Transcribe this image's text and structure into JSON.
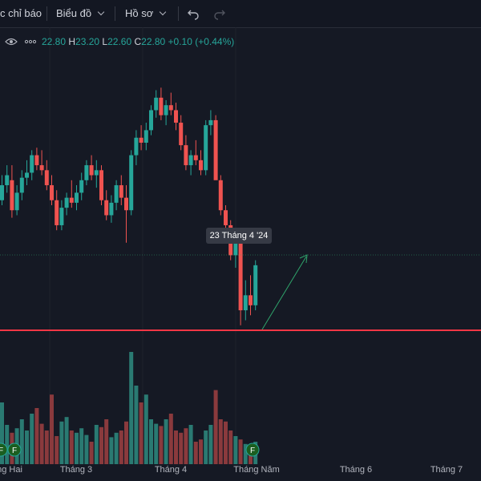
{
  "toolbar": {
    "indicators_label": "c chỉ báo",
    "chart_label": "Biểu đồ",
    "profile_label": "Hồ sơ",
    "undo_icon": "undo-icon",
    "redo_icon": "redo-icon"
  },
  "legend": {
    "o_value": "22.80",
    "h_label": "H",
    "h_value": "23.20",
    "l_label": "L",
    "l_value": "22.60",
    "c_label": "C",
    "c_value": "22.80",
    "change": "+0.10 (+0.44%)",
    "eye_icon": "eye-icon",
    "more_icon": "more-dots-icon"
  },
  "tooltip": "23 Tháng 4 '24",
  "events": [
    "F",
    "F",
    "F"
  ],
  "chart_data": {
    "type": "candlestick",
    "x_labels": [
      "ng Hai",
      "Tháng 3",
      "Tháng 4",
      "Tháng Năm",
      "Tháng 6",
      "Tháng 7"
    ],
    "crosshair_date": "23 Tháng 4 '24",
    "last_bar": {
      "open": 22.8,
      "high": 23.2,
      "low": 22.6,
      "close": 22.8,
      "change": 0.1,
      "change_pct": 0.44
    },
    "colors": {
      "up": "#26a69a",
      "down": "#ef5350",
      "background": "#151924",
      "support_line": "#f23645",
      "arrow": "#2fa36b"
    },
    "candles_relative": [
      [
        0.52,
        0.62,
        0.5,
        0.58
      ],
      [
        0.58,
        0.66,
        0.55,
        0.62
      ],
      [
        0.6,
        0.66,
        0.45,
        0.48
      ],
      [
        0.48,
        0.58,
        0.46,
        0.55
      ],
      [
        0.55,
        0.64,
        0.52,
        0.61
      ],
      [
        0.61,
        0.68,
        0.58,
        0.63
      ],
      [
        0.63,
        0.72,
        0.6,
        0.7
      ],
      [
        0.7,
        0.73,
        0.64,
        0.66
      ],
      [
        0.66,
        0.72,
        0.62,
        0.64
      ],
      [
        0.64,
        0.68,
        0.56,
        0.58
      ],
      [
        0.58,
        0.62,
        0.5,
        0.52
      ],
      [
        0.52,
        0.56,
        0.4,
        0.42
      ],
      [
        0.42,
        0.52,
        0.4,
        0.49
      ],
      [
        0.49,
        0.55,
        0.46,
        0.53
      ],
      [
        0.53,
        0.6,
        0.49,
        0.51
      ],
      [
        0.51,
        0.58,
        0.48,
        0.55
      ],
      [
        0.55,
        0.63,
        0.52,
        0.6
      ],
      [
        0.6,
        0.68,
        0.58,
        0.66
      ],
      [
        0.66,
        0.7,
        0.6,
        0.62
      ],
      [
        0.62,
        0.68,
        0.57,
        0.64
      ],
      [
        0.64,
        0.66,
        0.5,
        0.52
      ],
      [
        0.52,
        0.56,
        0.44,
        0.46
      ],
      [
        0.46,
        0.54,
        0.43,
        0.51
      ],
      [
        0.51,
        0.6,
        0.48,
        0.58
      ],
      [
        0.58,
        0.62,
        0.5,
        0.53
      ],
      [
        0.53,
        0.58,
        0.35,
        0.48
      ],
      [
        0.48,
        0.72,
        0.46,
        0.7
      ],
      [
        0.7,
        0.8,
        0.66,
        0.77
      ],
      [
        0.77,
        0.82,
        0.72,
        0.75
      ],
      [
        0.75,
        0.83,
        0.72,
        0.8
      ],
      [
        0.8,
        0.9,
        0.78,
        0.88
      ],
      [
        0.88,
        0.96,
        0.85,
        0.93
      ],
      [
        0.93,
        0.97,
        0.84,
        0.86
      ],
      [
        0.86,
        0.92,
        0.82,
        0.9
      ],
      [
        0.9,
        0.95,
        0.86,
        0.88
      ],
      [
        0.88,
        0.91,
        0.8,
        0.83
      ],
      [
        0.83,
        0.86,
        0.72,
        0.74
      ],
      [
        0.74,
        0.78,
        0.64,
        0.66
      ],
      [
        0.66,
        0.72,
        0.62,
        0.7
      ],
      [
        0.7,
        0.76,
        0.66,
        0.68
      ],
      [
        0.68,
        0.72,
        0.62,
        0.64
      ],
      [
        0.64,
        0.84,
        0.62,
        0.82
      ],
      [
        0.82,
        0.88,
        0.78,
        0.84
      ],
      [
        0.84,
        0.86,
        0.62,
        0.6
      ],
      [
        0.6,
        0.62,
        0.46,
        0.48
      ],
      [
        0.48,
        0.5,
        0.4,
        0.42
      ],
      [
        0.42,
        0.44,
        0.28,
        0.3
      ],
      [
        0.3,
        0.38,
        0.25,
        0.36
      ],
      [
        0.36,
        0.38,
        0.02,
        0.08
      ],
      [
        0.08,
        0.2,
        0.04,
        0.14
      ],
      [
        0.14,
        0.22,
        0.06,
        0.1
      ],
      [
        0.1,
        0.28,
        0.08,
        0.26
      ]
    ],
    "volumes_relative": [
      0.55,
      0.35,
      0.28,
      0.32,
      0.4,
      0.3,
      0.45,
      0.5,
      0.36,
      0.3,
      0.62,
      0.25,
      0.38,
      0.42,
      0.3,
      0.28,
      0.32,
      0.26,
      0.2,
      0.35,
      0.33,
      0.4,
      0.24,
      0.28,
      0.3,
      0.38,
      1.0,
      0.7,
      0.55,
      0.62,
      0.4,
      0.36,
      0.34,
      0.4,
      0.45,
      0.3,
      0.28,
      0.32,
      0.35,
      0.2,
      0.22,
      0.3,
      0.35,
      0.66,
      0.4,
      0.38,
      0.3,
      0.25,
      0.22,
      0.18,
      0.16,
      0.2
    ]
  }
}
